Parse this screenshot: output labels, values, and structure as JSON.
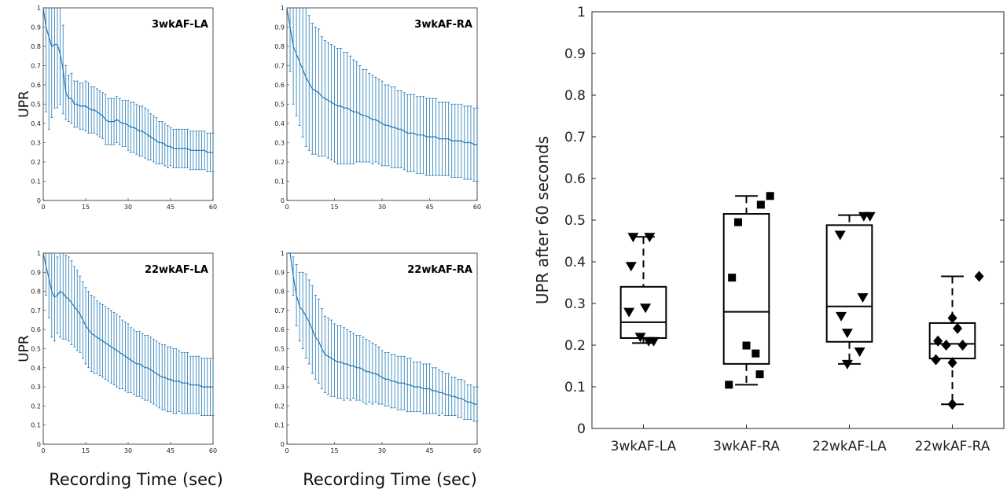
{
  "chart_data": [
    {
      "type": "line",
      "title": "3wkAF-LA",
      "ylabel": "UPR",
      "xlabel": "",
      "xlim": [
        0,
        60
      ],
      "ylim": [
        0,
        1
      ],
      "xticks": [
        "0",
        "15",
        "30",
        "45",
        "60"
      ],
      "yticks": [
        "0",
        "0.1",
        "0.2",
        "0.3",
        "0.4",
        "0.5",
        "0.6",
        "0.7",
        "0.8",
        "0.9",
        "1"
      ],
      "series": [
        {
          "x": [
            0,
            1,
            2,
            3,
            4,
            5,
            6,
            7,
            8,
            9,
            10,
            11,
            12,
            13,
            14,
            15,
            16,
            17,
            18,
            19,
            20,
            21,
            22,
            23,
            24,
            25,
            26,
            27,
            28,
            29,
            30,
            31,
            32,
            33,
            34,
            35,
            36,
            37,
            38,
            39,
            40,
            41,
            42,
            43,
            44,
            45,
            46,
            47,
            48,
            49,
            50,
            51,
            52,
            53,
            54,
            55,
            56,
            57,
            58,
            59,
            60
          ],
          "y": [
            1,
            0.9,
            0.85,
            0.8,
            0.81,
            0.81,
            0.76,
            0.68,
            0.56,
            0.53,
            0.53,
            0.5,
            0.5,
            0.49,
            0.49,
            0.49,
            0.48,
            0.47,
            0.47,
            0.46,
            0.45,
            0.44,
            0.42,
            0.41,
            0.41,
            0.41,
            0.42,
            0.41,
            0.4,
            0.4,
            0.39,
            0.38,
            0.38,
            0.37,
            0.36,
            0.36,
            0.35,
            0.34,
            0.33,
            0.32,
            0.31,
            0.3,
            0.3,
            0.29,
            0.28,
            0.28,
            0.27,
            0.27,
            0.27,
            0.27,
            0.27,
            0.27,
            0.26,
            0.26,
            0.26,
            0.26,
            0.26,
            0.26,
            0.25,
            0.25,
            0.25
          ],
          "err": [
            0,
            0.44,
            0.48,
            0.37,
            0.33,
            0.33,
            0.26,
            0.23,
            0.14,
            0.12,
            0.13,
            0.12,
            0.12,
            0.12,
            0.12,
            0.13,
            0.13,
            0.12,
            0.12,
            0.12,
            0.12,
            0.12,
            0.13,
            0.12,
            0.12,
            0.12,
            0.12,
            0.12,
            0.12,
            0.12,
            0.13,
            0.13,
            0.13,
            0.13,
            0.13,
            0.13,
            0.13,
            0.13,
            0.12,
            0.12,
            0.12,
            0.11,
            0.11,
            0.11,
            0.11,
            0.1,
            0.1,
            0.1,
            0.1,
            0.1,
            0.1,
            0.1,
            0.1,
            0.1,
            0.1,
            0.1,
            0.1,
            0.1,
            0.1,
            0.1,
            0.1
          ]
        }
      ]
    },
    {
      "type": "line",
      "title": "3wkAF-RA",
      "ylabel": "",
      "xlabel": "",
      "xlim": [
        0,
        60
      ],
      "ylim": [
        0,
        1
      ],
      "xticks": [
        "0",
        "15",
        "30",
        "45",
        "60"
      ],
      "yticks": [
        "0",
        "0.1",
        "0.2",
        "0.3",
        "0.4",
        "0.5",
        "0.6",
        "0.7",
        "0.8",
        "0.9",
        "1"
      ],
      "series": [
        {
          "x": [
            0,
            1,
            2,
            3,
            4,
            5,
            6,
            7,
            8,
            9,
            10,
            11,
            12,
            13,
            14,
            15,
            16,
            17,
            18,
            19,
            20,
            21,
            22,
            23,
            24,
            25,
            26,
            27,
            28,
            29,
            30,
            31,
            32,
            33,
            34,
            35,
            36,
            37,
            38,
            39,
            40,
            41,
            42,
            43,
            44,
            45,
            46,
            47,
            48,
            49,
            50,
            51,
            52,
            53,
            54,
            55,
            56,
            57,
            58,
            59,
            60
          ],
          "y": [
            1,
            0.9,
            0.8,
            0.76,
            0.72,
            0.68,
            0.64,
            0.61,
            0.58,
            0.57,
            0.56,
            0.54,
            0.53,
            0.52,
            0.51,
            0.5,
            0.49,
            0.49,
            0.48,
            0.48,
            0.47,
            0.46,
            0.46,
            0.45,
            0.44,
            0.44,
            0.43,
            0.42,
            0.42,
            0.41,
            0.4,
            0.39,
            0.39,
            0.38,
            0.38,
            0.37,
            0.37,
            0.36,
            0.35,
            0.35,
            0.35,
            0.34,
            0.34,
            0.34,
            0.33,
            0.33,
            0.33,
            0.33,
            0.32,
            0.32,
            0.32,
            0.32,
            0.31,
            0.31,
            0.31,
            0.31,
            0.3,
            0.3,
            0.3,
            0.29,
            0.29
          ],
          "err": [
            0,
            0.23,
            0.3,
            0.32,
            0.33,
            0.35,
            0.36,
            0.35,
            0.34,
            0.33,
            0.33,
            0.31,
            0.3,
            0.3,
            0.3,
            0.3,
            0.3,
            0.3,
            0.29,
            0.29,
            0.28,
            0.27,
            0.26,
            0.25,
            0.24,
            0.24,
            0.23,
            0.23,
            0.22,
            0.22,
            0.22,
            0.21,
            0.21,
            0.21,
            0.21,
            0.2,
            0.2,
            0.2,
            0.2,
            0.2,
            0.2,
            0.2,
            0.2,
            0.2,
            0.2,
            0.2,
            0.2,
            0.2,
            0.19,
            0.19,
            0.19,
            0.19,
            0.19,
            0.19,
            0.19,
            0.19,
            0.19,
            0.19,
            0.19,
            0.19,
            0.19
          ]
        }
      ]
    },
    {
      "type": "line",
      "title": "22wkAF-LA",
      "ylabel": "UPR",
      "xlabel": "Recording Time (sec)",
      "xlim": [
        0,
        60
      ],
      "ylim": [
        0,
        1
      ],
      "xticks": [
        "0",
        "15",
        "30",
        "45",
        "60"
      ],
      "yticks": [
        "0",
        "0.1",
        "0.2",
        "0.3",
        "0.4",
        "0.5",
        "0.6",
        "0.7",
        "0.8",
        "0.9",
        "1"
      ],
      "series": [
        {
          "x": [
            0,
            1,
            2,
            3,
            4,
            5,
            6,
            7,
            8,
            9,
            10,
            11,
            12,
            13,
            14,
            15,
            16,
            17,
            18,
            19,
            20,
            21,
            22,
            23,
            24,
            25,
            26,
            27,
            28,
            29,
            30,
            31,
            32,
            33,
            34,
            35,
            36,
            37,
            38,
            39,
            40,
            41,
            42,
            43,
            44,
            45,
            46,
            47,
            48,
            49,
            50,
            51,
            52,
            53,
            54,
            55,
            56,
            57,
            58,
            59,
            60
          ],
          "y": [
            1,
            0.93,
            0.87,
            0.8,
            0.77,
            0.78,
            0.8,
            0.79,
            0.77,
            0.76,
            0.74,
            0.72,
            0.7,
            0.68,
            0.65,
            0.62,
            0.6,
            0.58,
            0.57,
            0.56,
            0.55,
            0.54,
            0.53,
            0.52,
            0.51,
            0.5,
            0.49,
            0.48,
            0.47,
            0.46,
            0.45,
            0.44,
            0.43,
            0.42,
            0.42,
            0.41,
            0.4,
            0.4,
            0.39,
            0.38,
            0.37,
            0.36,
            0.35,
            0.35,
            0.34,
            0.34,
            0.33,
            0.33,
            0.33,
            0.32,
            0.32,
            0.32,
            0.31,
            0.31,
            0.31,
            0.31,
            0.3,
            0.3,
            0.3,
            0.3,
            0.3
          ],
          "err": [
            0,
            0.15,
            0.21,
            0.24,
            0.23,
            0.2,
            0.24,
            0.24,
            0.22,
            0.22,
            0.22,
            0.21,
            0.21,
            0.2,
            0.2,
            0.2,
            0.2,
            0.2,
            0.2,
            0.19,
            0.19,
            0.19,
            0.19,
            0.19,
            0.19,
            0.19,
            0.19,
            0.19,
            0.18,
            0.18,
            0.18,
            0.17,
            0.17,
            0.17,
            0.17,
            0.17,
            0.17,
            0.17,
            0.17,
            0.17,
            0.17,
            0.17,
            0.17,
            0.17,
            0.17,
            0.17,
            0.17,
            0.17,
            0.16,
            0.16,
            0.16,
            0.16,
            0.15,
            0.15,
            0.15,
            0.15,
            0.15,
            0.15,
            0.15,
            0.15,
            0.15
          ]
        }
      ]
    },
    {
      "type": "line",
      "title": "22wkAF-RA",
      "ylabel": "",
      "xlabel": "Recording Time (sec)",
      "xlim": [
        0,
        60
      ],
      "ylim": [
        0,
        1
      ],
      "xticks": [
        "0",
        "15",
        "30",
        "45",
        "60"
      ],
      "yticks": [
        "0",
        "0.1",
        "0.2",
        "0.3",
        "0.4",
        "0.5",
        "0.6",
        "0.7",
        "0.8",
        "0.9",
        "1"
      ],
      "series": [
        {
          "x": [
            0,
            1,
            2,
            3,
            4,
            5,
            6,
            7,
            8,
            9,
            10,
            11,
            12,
            13,
            14,
            15,
            16,
            17,
            18,
            19,
            20,
            21,
            22,
            23,
            24,
            25,
            26,
            27,
            28,
            29,
            30,
            31,
            32,
            33,
            34,
            35,
            36,
            37,
            38,
            39,
            40,
            41,
            42,
            43,
            44,
            45,
            46,
            47,
            48,
            49,
            50,
            51,
            52,
            53,
            54,
            55,
            56,
            57,
            58,
            59,
            60
          ],
          "y": [
            1,
            1,
            0.88,
            0.78,
            0.72,
            0.7,
            0.67,
            0.64,
            0.6,
            0.56,
            0.54,
            0.5,
            0.47,
            0.46,
            0.45,
            0.44,
            0.43,
            0.43,
            0.42,
            0.42,
            0.41,
            0.41,
            0.4,
            0.4,
            0.39,
            0.38,
            0.38,
            0.37,
            0.37,
            0.36,
            0.35,
            0.34,
            0.34,
            0.33,
            0.33,
            0.32,
            0.32,
            0.32,
            0.31,
            0.31,
            0.3,
            0.3,
            0.3,
            0.29,
            0.29,
            0.29,
            0.28,
            0.28,
            0.27,
            0.27,
            0.26,
            0.26,
            0.25,
            0.25,
            0.24,
            0.24,
            0.23,
            0.22,
            0.22,
            0.21,
            0.21
          ],
          "err": [
            0,
            0,
            0.1,
            0.16,
            0.18,
            0.2,
            0.22,
            0.22,
            0.23,
            0.22,
            0.22,
            0.21,
            0.2,
            0.2,
            0.2,
            0.19,
            0.19,
            0.19,
            0.19,
            0.18,
            0.18,
            0.17,
            0.17,
            0.17,
            0.17,
            0.17,
            0.16,
            0.16,
            0.15,
            0.15,
            0.14,
            0.14,
            0.14,
            0.14,
            0.14,
            0.14,
            0.14,
            0.14,
            0.14,
            0.14,
            0.13,
            0.13,
            0.13,
            0.13,
            0.13,
            0.13,
            0.12,
            0.12,
            0.12,
            0.11,
            0.11,
            0.11,
            0.1,
            0.1,
            0.1,
            0.1,
            0.1,
            0.09,
            0.09,
            0.09,
            0.09
          ]
        }
      ]
    },
    {
      "type": "box",
      "title": "",
      "ylabel": "UPR after 60 seconds",
      "xlabel": "",
      "ylim": [
        0,
        1
      ],
      "yticks": [
        "0",
        "0.1",
        "0.2",
        "0.3",
        "0.4",
        "0.5",
        "0.6",
        "0.7",
        "0.8",
        "0.9",
        "1"
      ],
      "categories": [
        "3wkAF-LA",
        "3wkAF-RA",
        "22wkAF-LA",
        "22wkAF-RA"
      ],
      "boxes": [
        {
          "min": 0.205,
          "q1": 0.217,
          "median": 0.255,
          "q3": 0.34,
          "max": 0.46,
          "marker": "triangle-down",
          "points": [
            [
              -0.1,
              0.46
            ],
            [
              0.06,
              0.46
            ],
            [
              -0.12,
              0.39
            ],
            [
              -0.14,
              0.28
            ],
            [
              0.02,
              0.29
            ],
            [
              -0.03,
              0.22
            ],
            [
              0.05,
              0.21
            ],
            [
              0.1,
              0.21
            ]
          ]
        },
        {
          "min": 0.105,
          "q1": 0.155,
          "median": 0.28,
          "q3": 0.515,
          "max": 0.558,
          "marker": "square",
          "points": [
            [
              0.23,
              0.558
            ],
            [
              0.14,
              0.537
            ],
            [
              -0.08,
              0.495
            ],
            [
              -0.14,
              0.362
            ],
            [
              0.0,
              0.199
            ],
            [
              0.09,
              0.18
            ],
            [
              -0.17,
              0.105
            ],
            [
              0.13,
              0.13
            ]
          ]
        },
        {
          "min": 0.155,
          "q1": 0.208,
          "median": 0.293,
          "q3": 0.488,
          "max": 0.512,
          "marker": "triangle-down",
          "points": [
            [
              0.14,
              0.51
            ],
            [
              0.2,
              0.51
            ],
            [
              -0.09,
              0.465
            ],
            [
              0.13,
              0.315
            ],
            [
              -0.08,
              0.27
            ],
            [
              -0.02,
              0.23
            ],
            [
              0.1,
              0.185
            ],
            [
              -0.02,
              0.155
            ]
          ]
        },
        {
          "min": 0.058,
          "q1": 0.168,
          "median": 0.203,
          "q3": 0.253,
          "max": 0.365,
          "marker": "diamond",
          "points": [
            [
              0.26,
              0.365
            ],
            [
              0.0,
              0.265
            ],
            [
              0.05,
              0.24
            ],
            [
              -0.14,
              0.21
            ],
            [
              -0.06,
              0.2
            ],
            [
              0.1,
              0.2
            ],
            [
              -0.16,
              0.165
            ],
            [
              0.0,
              0.158
            ],
            [
              0.0,
              0.058
            ]
          ]
        }
      ]
    }
  ]
}
